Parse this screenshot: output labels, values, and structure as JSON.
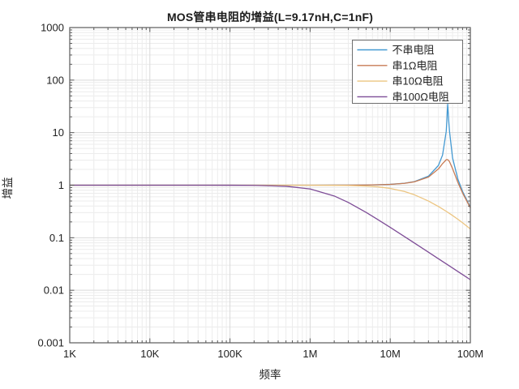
{
  "title": "MOS管串电阻的增益(L=9.17nH,C=1nF)",
  "chart_data": {
    "type": "line",
    "title": "MOS管串电阻的增益(L=9.17nH,C=1nF)",
    "xlabel": "频率",
    "ylabel": "增益",
    "xscale": "log",
    "yscale": "log",
    "xlim": [
      1000,
      100000000
    ],
    "ylim": [
      0.001,
      1000
    ],
    "grid": "on",
    "colors": {
      "frame": "#5a5a5a",
      "grid_major": "#d9d9d9",
      "grid_minor": "#ececec",
      "text": "#1f1f1f",
      "legend_border": "#6e6e6e",
      "background": "#ffffff"
    },
    "x_ticks": [
      {
        "label": "1K",
        "value": 1000
      },
      {
        "label": "10K",
        "value": 10000
      },
      {
        "label": "100K",
        "value": 100000
      },
      {
        "label": "1M",
        "value": 1000000
      },
      {
        "label": "10M",
        "value": 10000000
      },
      {
        "label": "100M",
        "value": 100000000
      }
    ],
    "y_ticks": [
      {
        "label": "1000",
        "value": 1000
      },
      {
        "label": "100",
        "value": 100
      },
      {
        "label": "10",
        "value": 10
      },
      {
        "label": "1",
        "value": 1
      },
      {
        "label": "0.1",
        "value": 0.1
      },
      {
        "label": "0.01",
        "value": 0.01
      },
      {
        "label": "0.001",
        "value": 0.001
      }
    ],
    "legend": {
      "position": "top-right",
      "entries": [
        {
          "label": "不串电阻",
          "color": "#4399d2"
        },
        {
          "label": "串1Ω电阻",
          "color": "#c77b54"
        },
        {
          "label": "串10Ω电阻",
          "color": "#ecc581"
        },
        {
          "label": "串100Ω电阻",
          "color": "#7e4d97"
        }
      ]
    },
    "series": [
      {
        "name": "不串电阻",
        "color": "#4399d2",
        "points": [
          [
            1000,
            1.0
          ],
          [
            10000,
            1.0
          ],
          [
            100000,
            1.0
          ],
          [
            300000,
            1.0
          ],
          [
            1000000,
            1.0004
          ],
          [
            2000000,
            1.0014
          ],
          [
            3000000,
            1.0033
          ],
          [
            5000000,
            1.0091
          ],
          [
            7000000,
            1.0181
          ],
          [
            10000000,
            1.0376
          ],
          [
            15000000,
            1.0887
          ],
          [
            20000000,
            1.1693
          ],
          [
            30000000,
            1.4832
          ],
          [
            40000000,
            2.376
          ],
          [
            45000000,
            3.745
          ],
          [
            50000000,
            10.53
          ],
          [
            51000000,
            17.1
          ],
          [
            51500000,
            25.0
          ],
          [
            52200000,
            35.0
          ],
          [
            53000000,
            24.0
          ],
          [
            54000000,
            15.0
          ],
          [
            55000000,
            10.5
          ],
          [
            60000000,
            3.297
          ],
          [
            70000000,
            1.2925
          ],
          [
            80000000,
            0.7595
          ],
          [
            100000000,
            0.3817
          ]
        ]
      },
      {
        "name": "串1Ω电阻",
        "color": "#c77b54",
        "points": [
          [
            1000,
            1.0
          ],
          [
            10000,
            1.0
          ],
          [
            100000,
            1.0
          ],
          [
            1000000,
            1.0004
          ],
          [
            2000000,
            1.0015
          ],
          [
            3000000,
            1.0034
          ],
          [
            5000000,
            1.0093
          ],
          [
            7000000,
            1.017
          ],
          [
            10000000,
            1.0353
          ],
          [
            15000000,
            1.083
          ],
          [
            20000000,
            1.157
          ],
          [
            30000000,
            1.4284
          ],
          [
            40000000,
            2.04
          ],
          [
            45000000,
            2.572
          ],
          [
            50000000,
            3.047
          ],
          [
            51000000,
            3.07
          ],
          [
            52500000,
            3.031
          ],
          [
            54000000,
            2.909
          ],
          [
            55000000,
            2.79
          ],
          [
            60000000,
            2.067
          ],
          [
            70000000,
            1.1236
          ],
          [
            80000000,
            0.7096
          ],
          [
            100000000,
            0.3712
          ]
        ]
      },
      {
        "name": "串10Ω电阻",
        "color": "#ecc581",
        "points": [
          [
            1000,
            1.0
          ],
          [
            10000,
            1.0
          ],
          [
            100000,
            1.0
          ],
          [
            200000,
            1.0
          ],
          [
            500000,
            0.9995
          ],
          [
            1000000,
            0.9984
          ],
          [
            2000000,
            0.9936
          ],
          [
            3000000,
            0.9858
          ],
          [
            5000000,
            0.9619
          ],
          [
            7000000,
            0.9292
          ],
          [
            10000000,
            0.8691
          ],
          [
            15000000,
            0.7599
          ],
          [
            20000000,
            0.6579
          ],
          [
            30000000,
            0.4995
          ],
          [
            40000000,
            0.3924
          ],
          [
            45000000,
            0.3521
          ],
          [
            50000000,
            0.3182
          ],
          [
            55000000,
            0.2893
          ],
          [
            60000000,
            0.2644
          ],
          [
            70000000,
            0.2239
          ],
          [
            80000000,
            0.1925
          ],
          [
            100000000,
            0.1469
          ]
        ]
      },
      {
        "name": "串100Ω电阻",
        "color": "#7e4d97",
        "points": [
          [
            1000,
            1.0
          ],
          [
            10000,
            1.0
          ],
          [
            30000,
            0.9998
          ],
          [
            100000,
            0.998
          ],
          [
            200000,
            0.9922
          ],
          [
            500000,
            0.954
          ],
          [
            1000000,
            0.8469
          ],
          [
            2000000,
            0.623
          ],
          [
            3000000,
            0.469
          ],
          [
            5000000,
            0.3036
          ],
          [
            7000000,
            0.2219
          ],
          [
            10000000,
            0.1573
          ],
          [
            15000000,
            0.1056
          ],
          [
            20000000,
            0.0794
          ],
          [
            30000000,
            0.053
          ],
          [
            40000000,
            0.0398
          ],
          [
            50000000,
            0.0318
          ],
          [
            60000000,
            0.0265
          ],
          [
            70000000,
            0.0227
          ],
          [
            80000000,
            0.0199
          ],
          [
            100000000,
            0.0159
          ]
        ]
      }
    ]
  }
}
